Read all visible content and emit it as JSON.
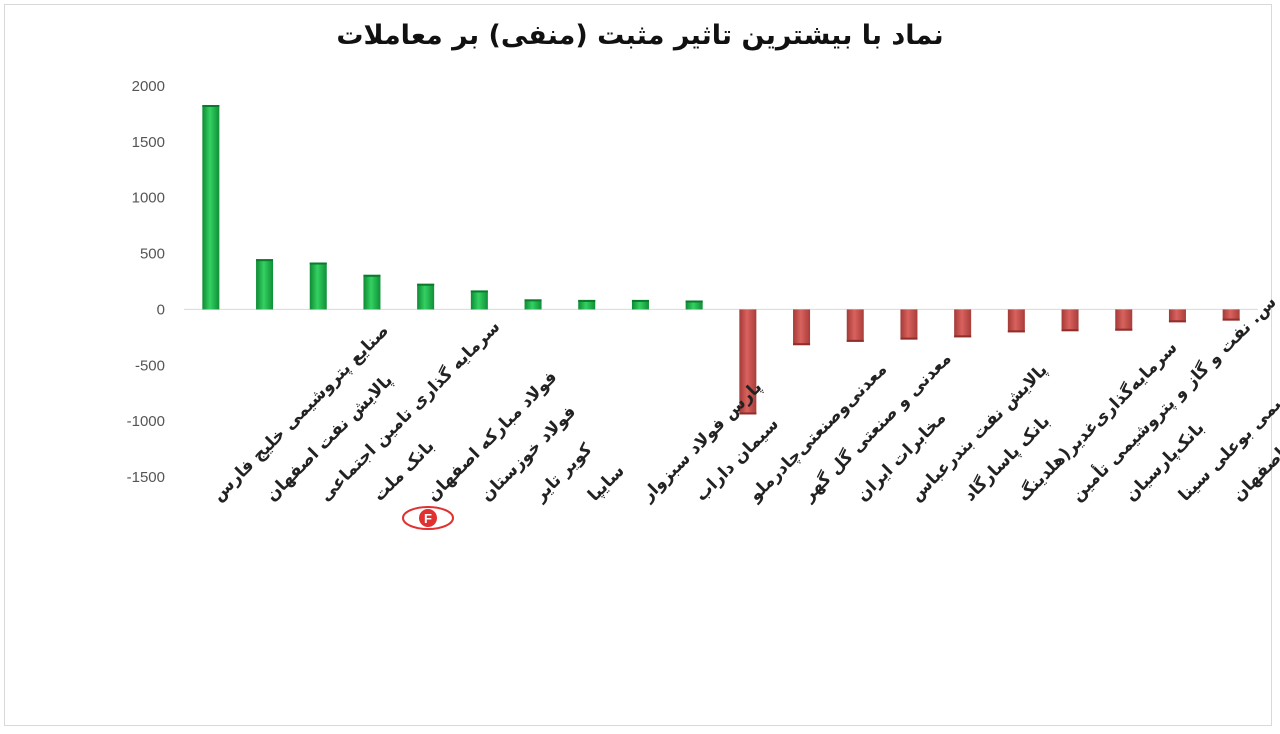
{
  "chart_data": {
    "type": "bar",
    "title": "نماد با بیشترین تاثیر مثبت (منفی) بر معاملات",
    "categories": [
      "صنایع پتروشیمی خلیج فارس",
      "پالایش نفت اصفهان",
      "سرمایه گذاری تامین اجتماعی",
      "بانک ملت",
      "فولاد مبارکه اصفهان",
      "فولاد خوزستان",
      "کویر تایر",
      "سایپا",
      "پارس فولاد سبزوار",
      "سیمان داراب",
      "معدنی‌وصنعتی‌چادرملو",
      "معدنی و صنعتی گل گهر",
      "مخابرات ایران",
      "پالایش نفت بندرعباس",
      "بانک پاسارگاد",
      "سرمایه‌گذاری‌غدیر(هلدینگ",
      "س. نفت و گاز و پتروشیمی تأمین",
      "بانک‌پارسیان",
      "پتروشیمی بوعلی سینا",
      "سیمان‌اصفهان"
    ],
    "values": [
      1830,
      450,
      420,
      310,
      230,
      170,
      90,
      85,
      85,
      80,
      -940,
      -320,
      -290,
      -270,
      -250,
      -205,
      -195,
      -190,
      -115,
      -100
    ],
    "ylim": [
      -1500,
      2000
    ],
    "yticks": [
      2000,
      1500,
      1000,
      500,
      0,
      -500,
      -1000,
      -1500
    ],
    "grid": false,
    "colors": {
      "positive": "#1db34a",
      "negative": "#c0504d"
    }
  },
  "watermark": "F"
}
